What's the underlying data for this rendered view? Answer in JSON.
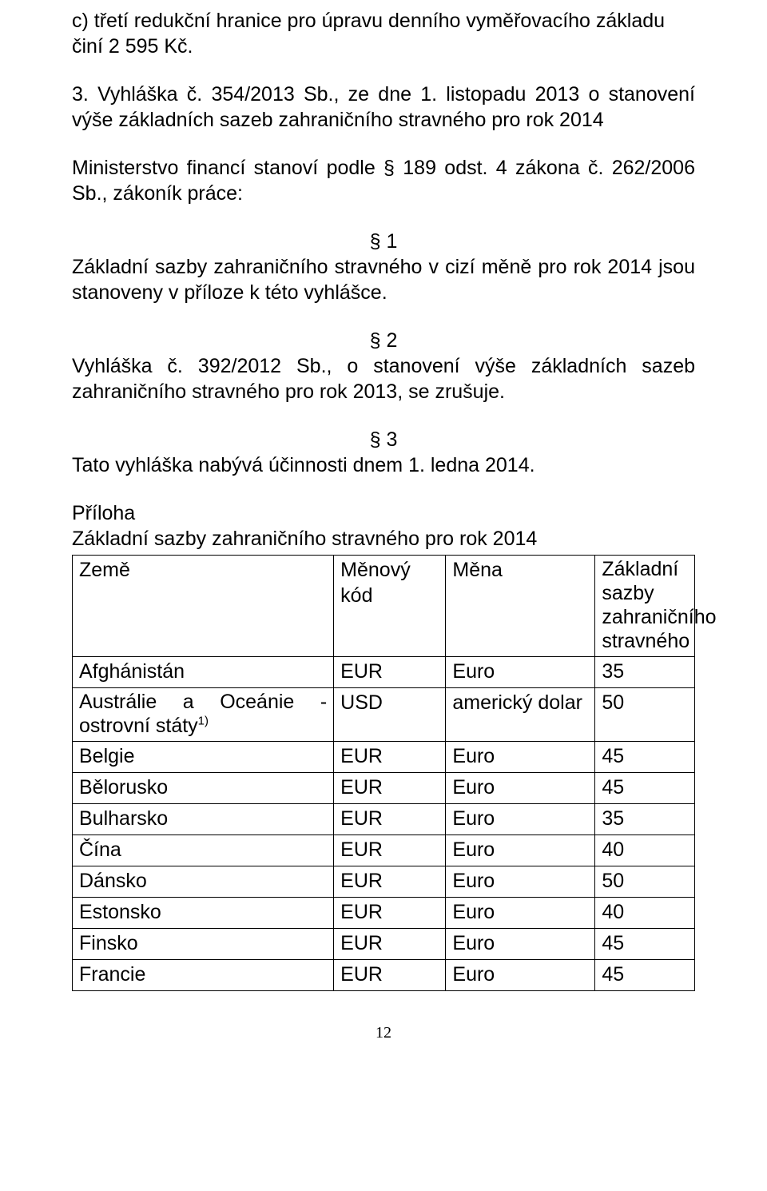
{
  "p_c": "c) třetí redukční hranice pro úpravu denního vyměřovacího základu činí 2 595 Kč.",
  "p_3": "3. Vyhláška č. 354/2013 Sb., ze dne 1. listopadu 2013 o stanovení výše základních sazeb zahraničního stravného pro rok 2014",
  "p_min": "Ministerstvo financí stanoví podle § 189 odst. 4 zákona č. 262/2006 Sb., zákoník práce:",
  "s1_num": "§ 1",
  "s1_body": "Základní sazby zahraničního stravného v cizí měně pro rok 2014 jsou stanoveny v příloze k této vyhlášce.",
  "s2_num": "§ 2",
  "s2_body": "Vyhláška č. 392/2012 Sb., o stanovení výše základních sazeb zahraničního stravného pro rok 2013, se zrušuje.",
  "s3_num": "§ 3",
  "s3_body": "Tato vyhláška nabývá účinnosti dnem 1. ledna 2014.",
  "attach_title": "Příloha",
  "attach_sub": "Základní sazby zahraničního stravného pro rok 2014",
  "head": {
    "country": "Země",
    "code": "Měnový kód",
    "currency": "Měna",
    "rate": "Základní sazby zahraničního stravného"
  },
  "rows": [
    {
      "country": "Afghánistán",
      "code": "EUR",
      "currency": "Euro",
      "rate": "35"
    },
    {
      "country_pre": "Austrálie a Oceánie - ostrovní státy",
      "country_sup": "1)",
      "code": "USD",
      "currency": "americký dolar",
      "rate": "50"
    },
    {
      "country": "Belgie",
      "code": "EUR",
      "currency": "Euro",
      "rate": "45"
    },
    {
      "country": "Bělorusko",
      "code": "EUR",
      "currency": "Euro",
      "rate": "45"
    },
    {
      "country": "Bulharsko",
      "code": "EUR",
      "currency": "Euro",
      "rate": "35"
    },
    {
      "country": "Čína",
      "code": "EUR",
      "currency": "Euro",
      "rate": "40"
    },
    {
      "country": "Dánsko",
      "code": "EUR",
      "currency": "Euro",
      "rate": "50"
    },
    {
      "country": "Estonsko",
      "code": "EUR",
      "currency": "Euro",
      "rate": "40"
    },
    {
      "country": "Finsko",
      "code": "EUR",
      "currency": "Euro",
      "rate": "45"
    },
    {
      "country": "Francie",
      "code": "EUR",
      "currency": "Euro",
      "rate": "45"
    }
  ],
  "page_number": "12"
}
